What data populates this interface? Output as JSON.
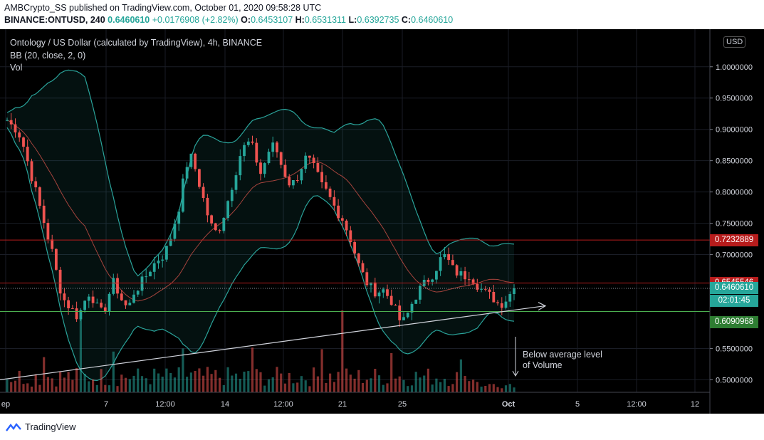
{
  "header": {
    "publish_line": "AMBCrypto_SS published on TradingView.com, October 01, 2020 09:58:28 UTC",
    "symbol": "BINANCE:ONTUSD, 240",
    "last": "0.6460610",
    "change": "+0.0176908 (+2.82%)",
    "o_label": "O:",
    "o_value": "0.6453107",
    "h_label": "H:",
    "h_value": "0.6531311",
    "l_label": "L:",
    "l_value": "0.6392735",
    "c_label": "C:",
    "c_value": "0.6460610"
  },
  "legend": {
    "title": "Ontology / US Dollar (calculated by TradingView), 4h, BINANCE",
    "bb": "BB (20, close, 2, 0)",
    "vol": "Vol"
  },
  "currency": "USD",
  "badges": {
    "resistance_top": "0.7232889",
    "resistance": "0.6545546",
    "last_price": "0.6460610",
    "countdown": "02:01:45",
    "support": "0.6090968"
  },
  "annotation": {
    "line1": "Below average level",
    "line2": "of Volume"
  },
  "footer": {
    "brand": "TradingView"
  },
  "colors": {
    "up": "#26a69a",
    "down": "#ef5350",
    "band": "#2aa39a",
    "basis": "#a5443d",
    "red_line": "#b71c1c",
    "green_line": "#4caf50"
  },
  "chart_data": {
    "type": "candlestick",
    "title": "Ontology / US Dollar (calculated by TradingView), 4h, BINANCE",
    "ylim": [
      0.48,
      1.06
    ],
    "y_ticks": [
      "1.0000000",
      "0.9500000",
      "0.9000000",
      "0.8500000",
      "0.8000000",
      "0.7500000",
      "0.7000000",
      "0.5500000",
      "0.5000000"
    ],
    "x_ticks": [
      "ep",
      "7",
      "12:00",
      "14",
      "12:00",
      "21",
      "25",
      "Oct",
      "5",
      "12:00",
      "12"
    ],
    "horizontal_levels": [
      0.7232889,
      0.6545546,
      0.609097
    ],
    "trendline": {
      "from": 0.5,
      "to": 0.618
    },
    "close_path": [
      0.915,
      0.905,
      0.9,
      0.88,
      0.85,
      0.82,
      0.79,
      0.76,
      0.73,
      0.7,
      0.66,
      0.63,
      0.62,
      0.61,
      0.6,
      0.62,
      0.64,
      0.63,
      0.61,
      0.605,
      0.635,
      0.655,
      0.64,
      0.62,
      0.615,
      0.64,
      0.65,
      0.66,
      0.675,
      0.685,
      0.695,
      0.7,
      0.72,
      0.75,
      0.78,
      0.83,
      0.86,
      0.84,
      0.81,
      0.78,
      0.75,
      0.735,
      0.745,
      0.77,
      0.8,
      0.83,
      0.86,
      0.875,
      0.88,
      0.855,
      0.83,
      0.85,
      0.875,
      0.87,
      0.845,
      0.825,
      0.81,
      0.82,
      0.84,
      0.855,
      0.845,
      0.83,
      0.81,
      0.8,
      0.785,
      0.77,
      0.76,
      0.74,
      0.72,
      0.69,
      0.67,
      0.655,
      0.645,
      0.64,
      0.645,
      0.635,
      0.625,
      0.6,
      0.59,
      0.605,
      0.625,
      0.64,
      0.65,
      0.66,
      0.67,
      0.685,
      0.7,
      0.69,
      0.675,
      0.67,
      0.665,
      0.67,
      0.66,
      0.65,
      0.64,
      0.635,
      0.63,
      0.62,
      0.625,
      0.635,
      0.646
    ]
  }
}
